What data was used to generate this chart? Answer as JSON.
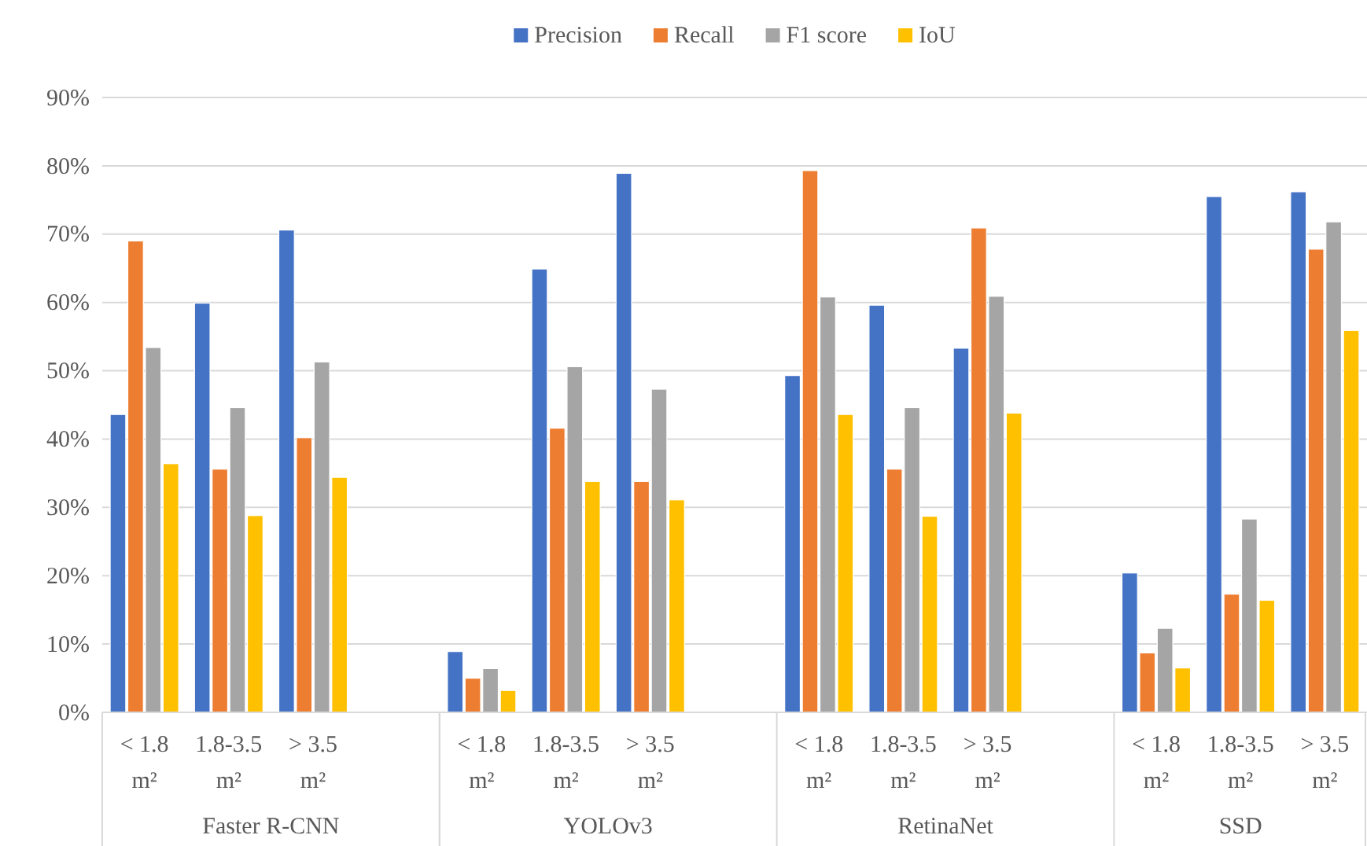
{
  "chart_data": {
    "type": "bar",
    "categories": [
      "< 1.8 m²",
      "1.8-3.5 m²",
      "> 3.5 m²",
      null,
      "< 1.8 m²",
      "1.8-3.5 m²",
      "> 3.5 m²",
      null,
      "< 1.8 m²",
      "1.8-3.5 m²",
      "> 3.5 m²",
      null,
      "< 1.8 m²",
      "1.8-3.5 m²",
      "> 3.5 m²"
    ],
    "series": [
      {
        "name": "Precision",
        "color": "#4472c4",
        "values": [
          43.6,
          59.9,
          70.6,
          null,
          8.9,
          64.9,
          78.9,
          null,
          49.3,
          59.6,
          53.3,
          null,
          20.4,
          75.5,
          76.2
        ]
      },
      {
        "name": "Recall",
        "color": "#ed7d31",
        "values": [
          69.0,
          35.6,
          40.2,
          null,
          5.0,
          41.6,
          33.8,
          null,
          79.3,
          35.6,
          70.9,
          null,
          8.7,
          17.3,
          67.8
        ]
      },
      {
        "name": "F1 score",
        "color": "#a5a5a5",
        "values": [
          53.4,
          44.6,
          51.3,
          null,
          6.4,
          50.6,
          47.3,
          null,
          60.8,
          44.6,
          60.9,
          null,
          12.3,
          28.3,
          71.8
        ]
      },
      {
        "name": "IoU",
        "color": "#ffc000",
        "values": [
          36.4,
          28.8,
          34.4,
          null,
          3.2,
          33.8,
          31.1,
          null,
          43.6,
          28.7,
          43.8,
          null,
          6.5,
          16.4,
          55.9
        ]
      }
    ],
    "annotations": [
      "Faster R-CNN",
      "YOLOv3",
      "RetinaNet",
      "SSD"
    ],
    "ylim": [
      0,
      90
    ],
    "yticks": [
      {
        "value": 0,
        "label": "0%"
      },
      {
        "value": 10,
        "label": "10%"
      },
      {
        "value": 20,
        "label": "20%"
      },
      {
        "value": 30,
        "label": "30%"
      },
      {
        "value": 40,
        "label": "40%"
      },
      {
        "value": 50,
        "label": "50%"
      },
      {
        "value": 60,
        "label": "60%"
      },
      {
        "value": 70,
        "label": "70%"
      },
      {
        "value": 80,
        "label": "80%"
      },
      {
        "value": 90,
        "label": "90%"
      }
    ],
    "grid": "y",
    "legend": "top"
  }
}
